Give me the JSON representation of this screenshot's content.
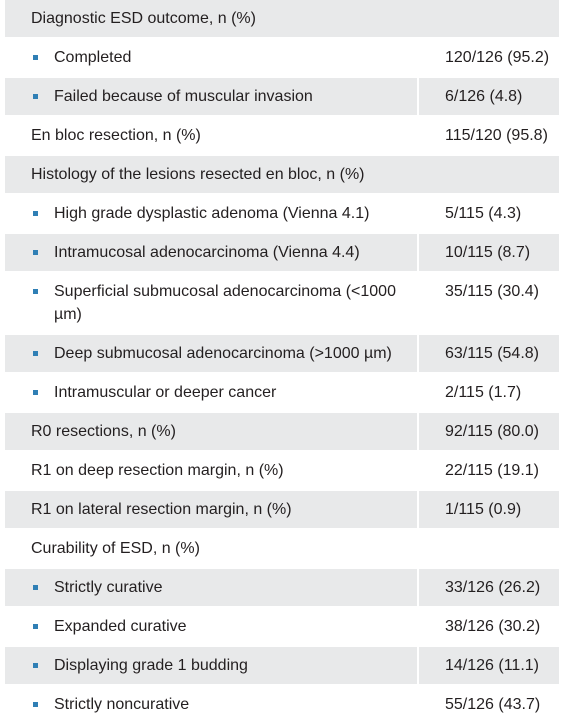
{
  "rows": [
    {
      "label": "Diagnostic ESD outcome, n (%)",
      "value": "",
      "bullet": false,
      "shade": true,
      "span": true
    },
    {
      "label": "Completed",
      "value": "120/126 (95.2)",
      "bullet": true,
      "shade": false
    },
    {
      "label": "Failed because of muscular invasion",
      "value": "6/126 (4.8)",
      "bullet": true,
      "shade": true
    },
    {
      "label": "En bloc resection, n (%)",
      "value": "115/120 (95.8)",
      "bullet": false,
      "shade": false
    },
    {
      "label": "Histology of the lesions resected en bloc, n (%)",
      "value": "",
      "bullet": false,
      "shade": true,
      "span": true
    },
    {
      "label": "High grade dysplastic adenoma (Vienna 4.1)",
      "value": "5/115 (4.3)",
      "bullet": true,
      "shade": false
    },
    {
      "label": "Intramucosal adenocarcinoma (Vienna 4.4)",
      "value": "10/115 (8.7)",
      "bullet": true,
      "shade": true
    },
    {
      "label": "Superficial submucosal adenocarcinoma (<1000 µm)",
      "value": "35/115 (30.4)",
      "bullet": true,
      "shade": false
    },
    {
      "label": "Deep submucosal adenocarcinoma (>1000 µm)",
      "value": "63/115 (54.8)",
      "bullet": true,
      "shade": true
    },
    {
      "label": "Intramuscular or deeper cancer",
      "value": "2/115 (1.7)",
      "bullet": true,
      "shade": false
    },
    {
      "label": "R0 resections, n (%)",
      "value": "92/115 (80.0)",
      "bullet": false,
      "shade": true
    },
    {
      "label": "R1 on deep resection margin, n (%)",
      "value": "22/115 (19.1)",
      "bullet": false,
      "shade": false
    },
    {
      "label": "R1 on lateral resection margin, n (%)",
      "value": "1/115 (0.9)",
      "bullet": false,
      "shade": true
    },
    {
      "label": "Curability of ESD, n (%)",
      "value": "",
      "bullet": false,
      "shade": false,
      "span": true
    },
    {
      "label": "Strictly curative",
      "value": "33/126 (26.2)",
      "bullet": true,
      "shade": true
    },
    {
      "label": "Expanded curative",
      "value": "38/126 (30.2)",
      "bullet": true,
      "shade": false
    },
    {
      "label": "Displaying grade 1 budding",
      "value": "14/126 (11.1)",
      "bullet": true,
      "shade": true
    },
    {
      "label": "Strictly noncurative",
      "value": "55/126 (43.7)",
      "bullet": true,
      "shade": false
    }
  ],
  "colors": {
    "shade": "#e8e9ea",
    "bullet": "#2f7fb5",
    "text": "#231f20"
  }
}
